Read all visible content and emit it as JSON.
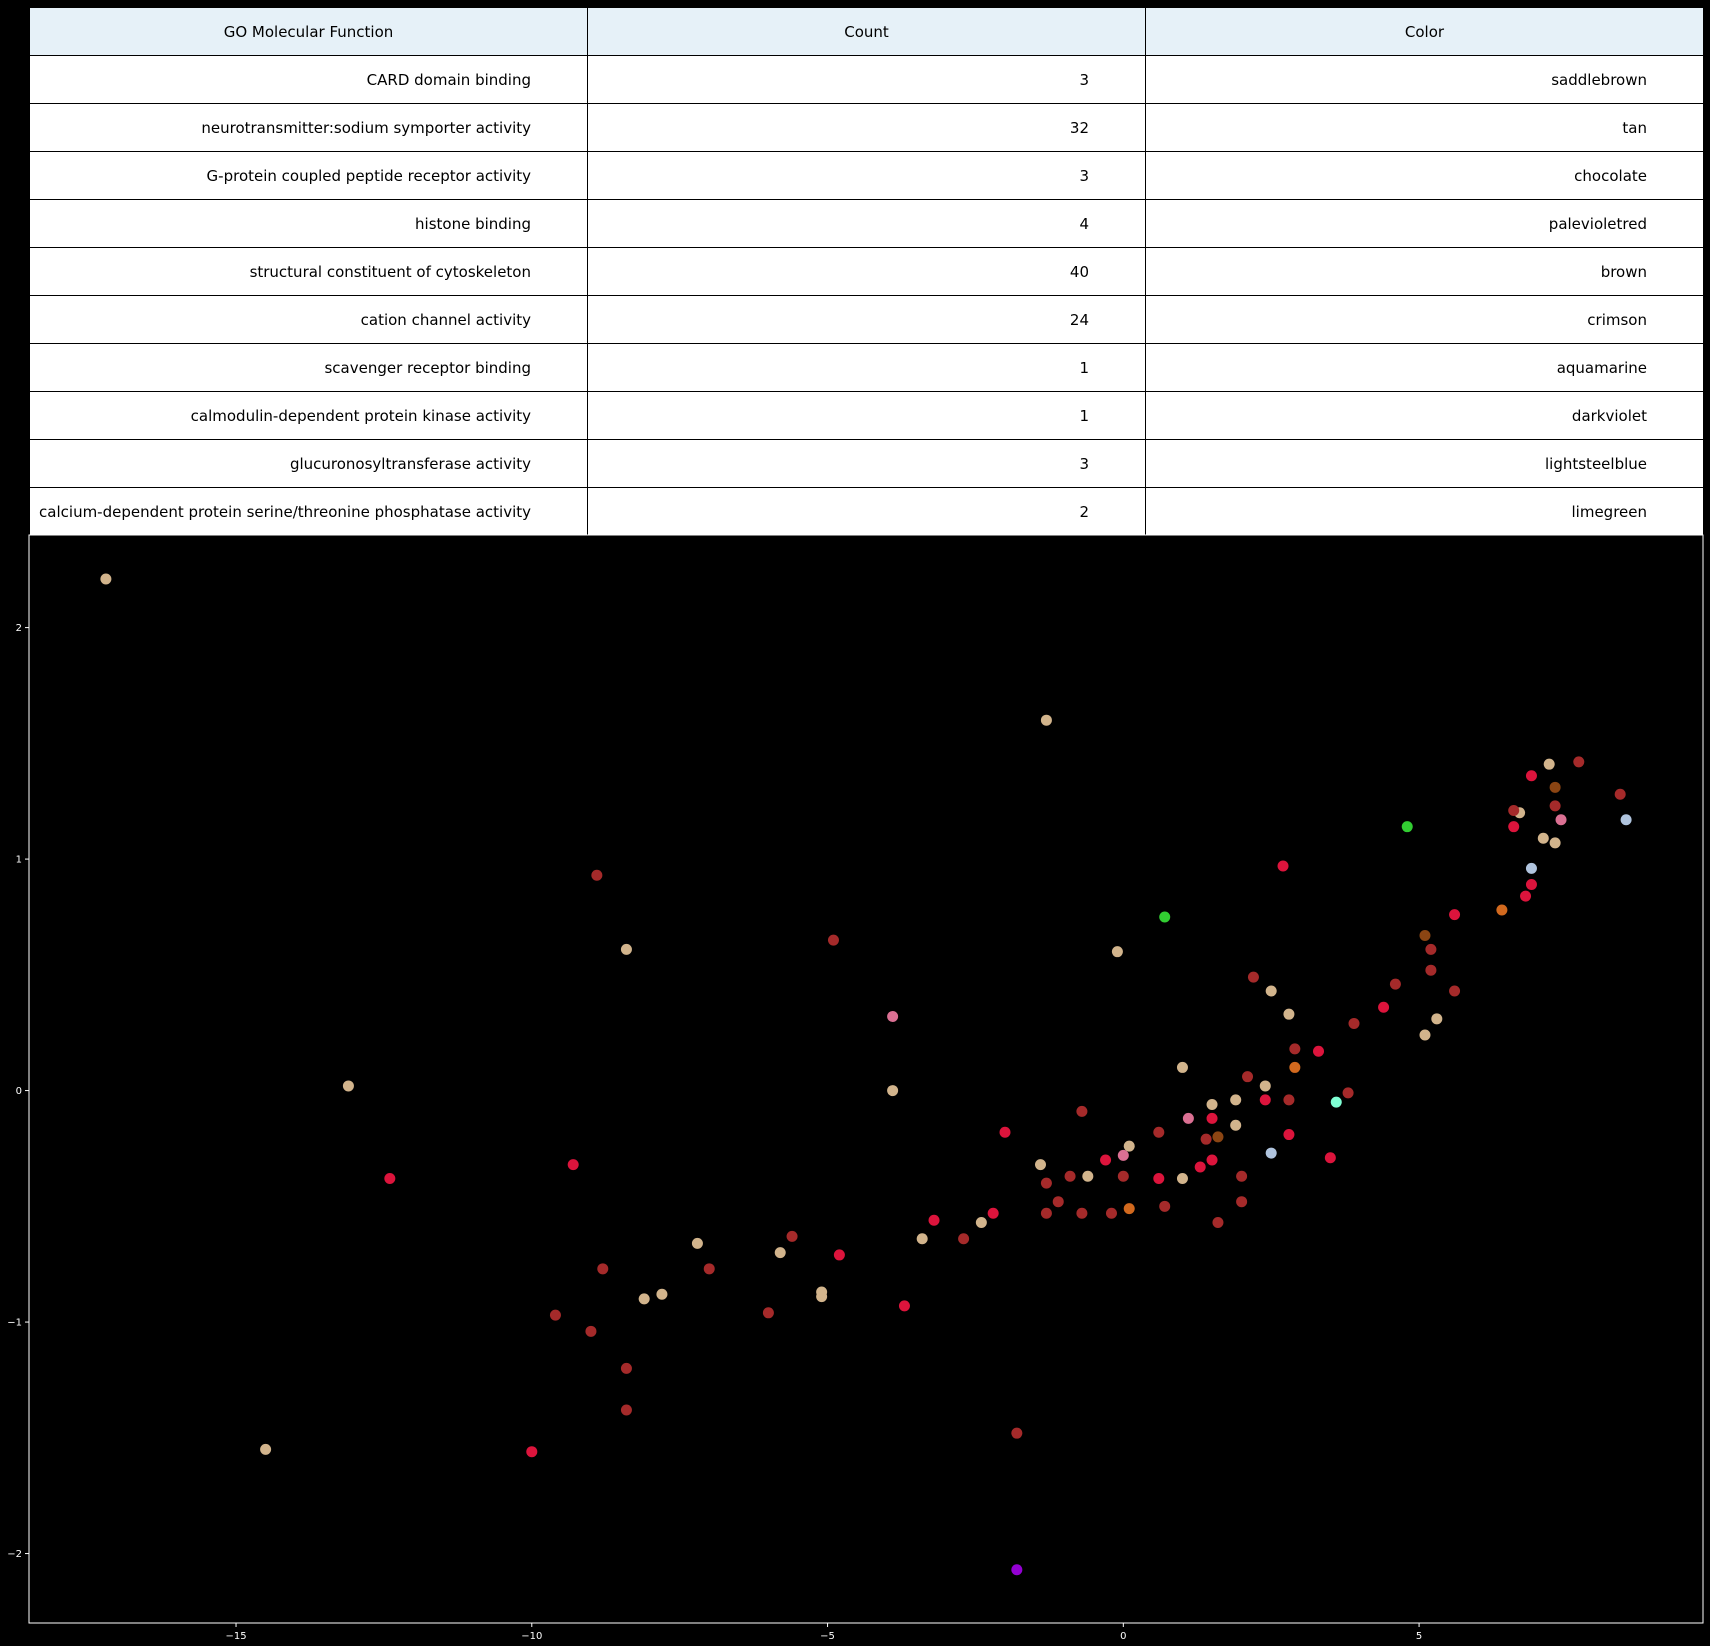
{
  "table": {
    "headers": [
      "GO Molecular Function",
      "Count",
      "Color"
    ],
    "rows": [
      [
        "CARD domain binding",
        "3",
        "saddlebrown"
      ],
      [
        "neurotransmitter:sodium symporter activity",
        "32",
        "tan"
      ],
      [
        "G-protein coupled peptide receptor activity",
        "3",
        "chocolate"
      ],
      [
        "histone binding",
        "4",
        "palevioletred"
      ],
      [
        "structural constituent of cytoskeleton",
        "40",
        "brown"
      ],
      [
        "cation channel activity",
        "24",
        "crimson"
      ],
      [
        "scavenger receptor binding",
        "1",
        "aquamarine"
      ],
      [
        "calmodulin-dependent protein kinase activity",
        "1",
        "darkviolet"
      ],
      [
        "glucuronosyltransferase activity",
        "3",
        "lightsteelblue"
      ],
      [
        "calcium-dependent protein serine/threonine phosphatase activity",
        "2",
        "limegreen"
      ]
    ]
  },
  "chart_data": {
    "type": "scatter",
    "title": "",
    "xlabel": "",
    "ylabel": "",
    "xlim": [
      -18.5,
      9.8
    ],
    "ylim": [
      -2.3,
      2.4
    ],
    "x_ticks": [
      -15,
      -10,
      -5,
      0,
      5
    ],
    "y_ticks": [
      -2,
      -1,
      0,
      1,
      2
    ],
    "tick_labels_x": [
      "−15",
      "−10",
      "−5",
      "0",
      "5"
    ],
    "tick_labels_y": [
      "−2",
      "−1",
      "0",
      "1",
      "2"
    ],
    "grid": false,
    "background": "#000000",
    "series": [
      {
        "color": "#8b4513",
        "points": [
          [
            7.3,
            1.31
          ],
          [
            5.1,
            0.67
          ],
          [
            1.6,
            -0.2
          ]
        ]
      },
      {
        "color": "#d2b48c",
        "points": [
          [
            -17.2,
            2.21
          ],
          [
            -1.3,
            1.6
          ],
          [
            -8.4,
            0.61
          ],
          [
            -0.1,
            0.6
          ],
          [
            -13.1,
            0.02
          ],
          [
            -3.9,
            0.0
          ],
          [
            -14.5,
            -1.55
          ],
          [
            -7.2,
            -0.66
          ],
          [
            -5.8,
            -0.7
          ],
          [
            -8.1,
            -0.9
          ],
          [
            -7.8,
            -0.88
          ],
          [
            -5.1,
            -0.87
          ],
          [
            -5.1,
            -0.89
          ],
          [
            -3.4,
            -0.64
          ],
          [
            -2.4,
            -0.57
          ],
          [
            -1.4,
            -0.32
          ],
          [
            -0.6,
            -0.37
          ],
          [
            0.1,
            -0.24
          ],
          [
            1.0,
            0.1
          ],
          [
            1.0,
            -0.38
          ],
          [
            1.5,
            -0.06
          ],
          [
            1.9,
            -0.04
          ],
          [
            1.9,
            -0.15
          ],
          [
            2.4,
            0.02
          ],
          [
            2.5,
            0.43
          ],
          [
            2.8,
            0.33
          ],
          [
            5.1,
            0.24
          ],
          [
            5.3,
            0.31
          ],
          [
            6.7,
            1.2
          ],
          [
            7.1,
            1.09
          ],
          [
            7.2,
            1.41
          ],
          [
            7.3,
            1.07
          ]
        ]
      },
      {
        "color": "#d2691e",
        "points": [
          [
            6.4,
            0.78
          ],
          [
            2.9,
            0.1
          ],
          [
            0.1,
            -0.51
          ]
        ]
      },
      {
        "color": "#db7093",
        "points": [
          [
            -3.9,
            0.32
          ],
          [
            1.1,
            -0.12
          ],
          [
            0.0,
            -0.28
          ],
          [
            7.4,
            1.17
          ]
        ]
      },
      {
        "color": "#a52a2a",
        "points": [
          [
            -8.9,
            0.93
          ],
          [
            -4.9,
            0.65
          ],
          [
            -8.8,
            -0.77
          ],
          [
            -9.6,
            -0.97
          ],
          [
            -9.0,
            -1.04
          ],
          [
            -8.4,
            -1.2
          ],
          [
            -8.4,
            -1.38
          ],
          [
            -7.0,
            -0.77
          ],
          [
            -6.0,
            -0.96
          ],
          [
            -5.6,
            -0.63
          ],
          [
            -2.7,
            -0.64
          ],
          [
            -1.8,
            -1.48
          ],
          [
            -1.3,
            -0.4
          ],
          [
            -1.3,
            -0.53
          ],
          [
            -1.1,
            -0.48
          ],
          [
            -0.9,
            -0.37
          ],
          [
            -0.7,
            -0.09
          ],
          [
            -0.7,
            -0.53
          ],
          [
            -0.2,
            -0.53
          ],
          [
            0.0,
            -0.37
          ],
          [
            0.6,
            -0.18
          ],
          [
            0.7,
            -0.5
          ],
          [
            1.4,
            -0.21
          ],
          [
            1.6,
            -0.57
          ],
          [
            2.0,
            -0.37
          ],
          [
            2.0,
            -0.48
          ],
          [
            2.1,
            0.06
          ],
          [
            2.2,
            0.49
          ],
          [
            2.8,
            -0.04
          ],
          [
            2.9,
            0.18
          ],
          [
            3.8,
            -0.01
          ],
          [
            3.9,
            0.29
          ],
          [
            4.6,
            0.46
          ],
          [
            5.2,
            0.52
          ],
          [
            5.2,
            0.61
          ],
          [
            5.6,
            0.43
          ],
          [
            6.6,
            1.21
          ],
          [
            7.3,
            1.23
          ],
          [
            7.7,
            1.42
          ],
          [
            8.4,
            1.28
          ]
        ]
      },
      {
        "color": "#dc143c",
        "points": [
          [
            -12.4,
            -0.38
          ],
          [
            -9.3,
            -0.32
          ],
          [
            -10.0,
            -1.56
          ],
          [
            -4.8,
            -0.71
          ],
          [
            -3.7,
            -0.93
          ],
          [
            -3.2,
            -0.56
          ],
          [
            -2.2,
            -0.53
          ],
          [
            -2.0,
            -0.18
          ],
          [
            -0.3,
            -0.3
          ],
          [
            0.6,
            -0.38
          ],
          [
            1.3,
            -0.33
          ],
          [
            1.5,
            -0.12
          ],
          [
            1.5,
            -0.3
          ],
          [
            2.4,
            -0.04
          ],
          [
            2.7,
            0.97
          ],
          [
            2.8,
            -0.19
          ],
          [
            3.3,
            0.17
          ],
          [
            3.5,
            -0.29
          ],
          [
            4.4,
            0.36
          ],
          [
            5.6,
            0.76
          ],
          [
            6.6,
            1.14
          ],
          [
            6.8,
            0.84
          ],
          [
            6.9,
            0.89
          ],
          [
            6.9,
            1.36
          ]
        ]
      },
      {
        "color": "#7fffd4",
        "points": [
          [
            3.6,
            -0.05
          ]
        ]
      },
      {
        "color": "#9400d3",
        "points": [
          [
            -1.8,
            -2.07
          ]
        ]
      },
      {
        "color": "#b0c4de",
        "points": [
          [
            2.5,
            -0.27
          ],
          [
            6.9,
            0.96
          ],
          [
            8.5,
            1.17
          ]
        ]
      },
      {
        "color": "#32cd32",
        "points": [
          [
            0.7,
            0.75
          ],
          [
            4.8,
            1.14
          ]
        ]
      }
    ]
  }
}
